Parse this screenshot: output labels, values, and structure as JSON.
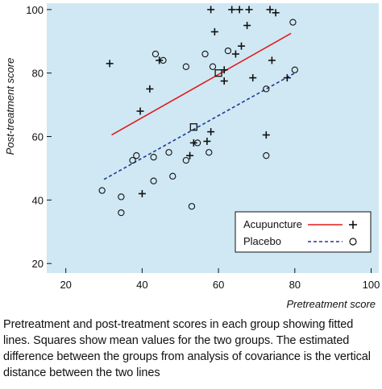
{
  "chart_data": {
    "type": "scatter",
    "xlabel": "Pretreatment score",
    "ylabel": "Post-treatment score",
    "xlim": [
      15,
      102
    ],
    "ylim": [
      17,
      102
    ],
    "xticks": [
      20,
      40,
      60,
      80,
      100
    ],
    "yticks": [
      20,
      40,
      60,
      80,
      100
    ],
    "background_color": "#cfe8f3",
    "grid": false,
    "legend_placement": "bottom-right",
    "series": [
      {
        "name": "Acupuncture",
        "marker": "plus",
        "color": "#111111",
        "fit_line": {
          "color": "#e31a1c",
          "style": "solid",
          "x": [
            32,
            79
          ],
          "y": [
            60.5,
            92.5
          ]
        },
        "mean": {
          "x": 60,
          "y": 80
        },
        "points": [
          {
            "x": 31.5,
            "y": 83
          },
          {
            "x": 39.5,
            "y": 68
          },
          {
            "x": 40,
            "y": 42
          },
          {
            "x": 42,
            "y": 75
          },
          {
            "x": 44.5,
            "y": 84
          },
          {
            "x": 52.5,
            "y": 54
          },
          {
            "x": 53.5,
            "y": 58
          },
          {
            "x": 57,
            "y": 58.5
          },
          {
            "x": 58,
            "y": 61.5
          },
          {
            "x": 58,
            "y": 100
          },
          {
            "x": 59,
            "y": 93
          },
          {
            "x": 61.5,
            "y": 77.5
          },
          {
            "x": 61.5,
            "y": 81
          },
          {
            "x": 63.5,
            "y": 100
          },
          {
            "x": 64.5,
            "y": 86
          },
          {
            "x": 65.5,
            "y": 100
          },
          {
            "x": 66,
            "y": 88.5
          },
          {
            "x": 67.5,
            "y": 95
          },
          {
            "x": 68,
            "y": 100
          },
          {
            "x": 69,
            "y": 78.5
          },
          {
            "x": 72.5,
            "y": 60.5
          },
          {
            "x": 73.5,
            "y": 100
          },
          {
            "x": 74,
            "y": 84
          },
          {
            "x": 75,
            "y": 99
          },
          {
            "x": 78,
            "y": 78.5
          }
        ]
      },
      {
        "name": "Placebo",
        "marker": "circle",
        "color": "#111111",
        "fit_line": {
          "color": "#1f3a93",
          "style": "dashed",
          "x": [
            30,
            80
          ],
          "y": [
            46.5,
            80
          ]
        },
        "mean": {
          "x": 53.5,
          "y": 63
        },
        "points": [
          {
            "x": 29.5,
            "y": 43
          },
          {
            "x": 34.5,
            "y": 41
          },
          {
            "x": 34.5,
            "y": 36
          },
          {
            "x": 37.5,
            "y": 52.5
          },
          {
            "x": 38.5,
            "y": 54
          },
          {
            "x": 43,
            "y": 53.5
          },
          {
            "x": 43,
            "y": 46
          },
          {
            "x": 43.5,
            "y": 86
          },
          {
            "x": 45.5,
            "y": 84
          },
          {
            "x": 47,
            "y": 55
          },
          {
            "x": 48,
            "y": 47.5
          },
          {
            "x": 51.5,
            "y": 52.5
          },
          {
            "x": 51.5,
            "y": 82
          },
          {
            "x": 53,
            "y": 38
          },
          {
            "x": 54.5,
            "y": 58
          },
          {
            "x": 56.5,
            "y": 86
          },
          {
            "x": 57.5,
            "y": 55
          },
          {
            "x": 58.5,
            "y": 82
          },
          {
            "x": 62.5,
            "y": 87
          },
          {
            "x": 72.5,
            "y": 75
          },
          {
            "x": 72.5,
            "y": 54
          },
          {
            "x": 79.5,
            "y": 96
          },
          {
            "x": 80,
            "y": 81
          }
        ]
      }
    ]
  },
  "caption": "Pretreatment and post-treatment scores in each group showing fitted lines. Squares show mean values for the two groups. The estimated difference between the groups from analysis of covariance is the vertical distance between the two lines"
}
